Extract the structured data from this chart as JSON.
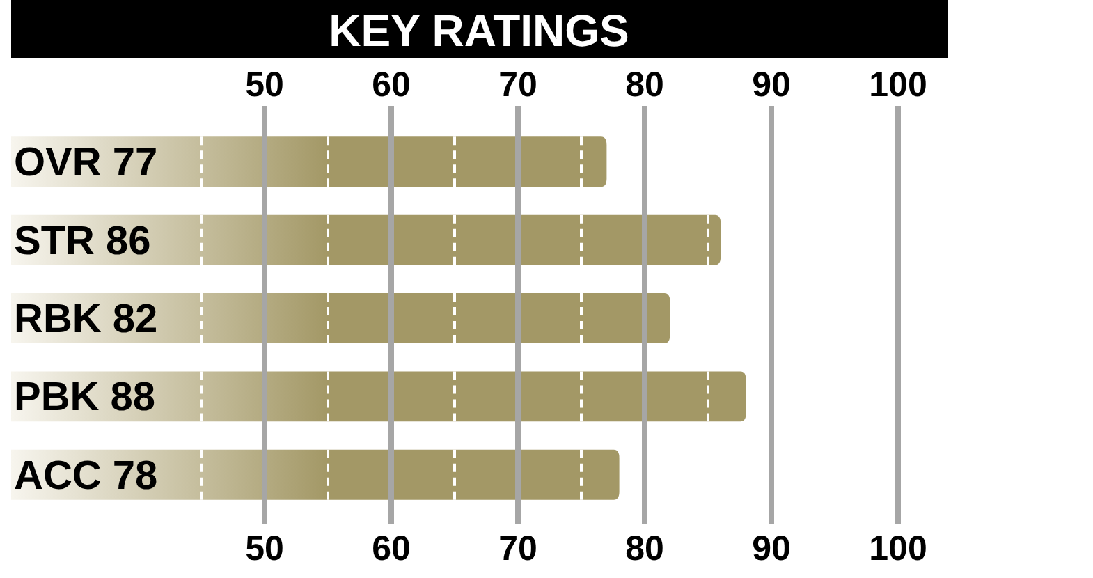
{
  "chart_data": {
    "type": "bar",
    "orientation": "horizontal",
    "title": "KEY RATINGS",
    "categories": [
      "OVR 77",
      "STR 86",
      "RBK 82",
      "PBK 88",
      "ACC 78"
    ],
    "values": [
      77,
      86,
      82,
      88,
      78
    ],
    "color": "#a39866",
    "xlim": [
      30,
      100
    ],
    "xticks": [
      50,
      60,
      70,
      80,
      90,
      100
    ],
    "x2lim": [
      30,
      100
    ],
    "x2ticks": [
      50,
      60,
      70,
      80,
      90,
      100
    ],
    "grid": "x"
  }
}
